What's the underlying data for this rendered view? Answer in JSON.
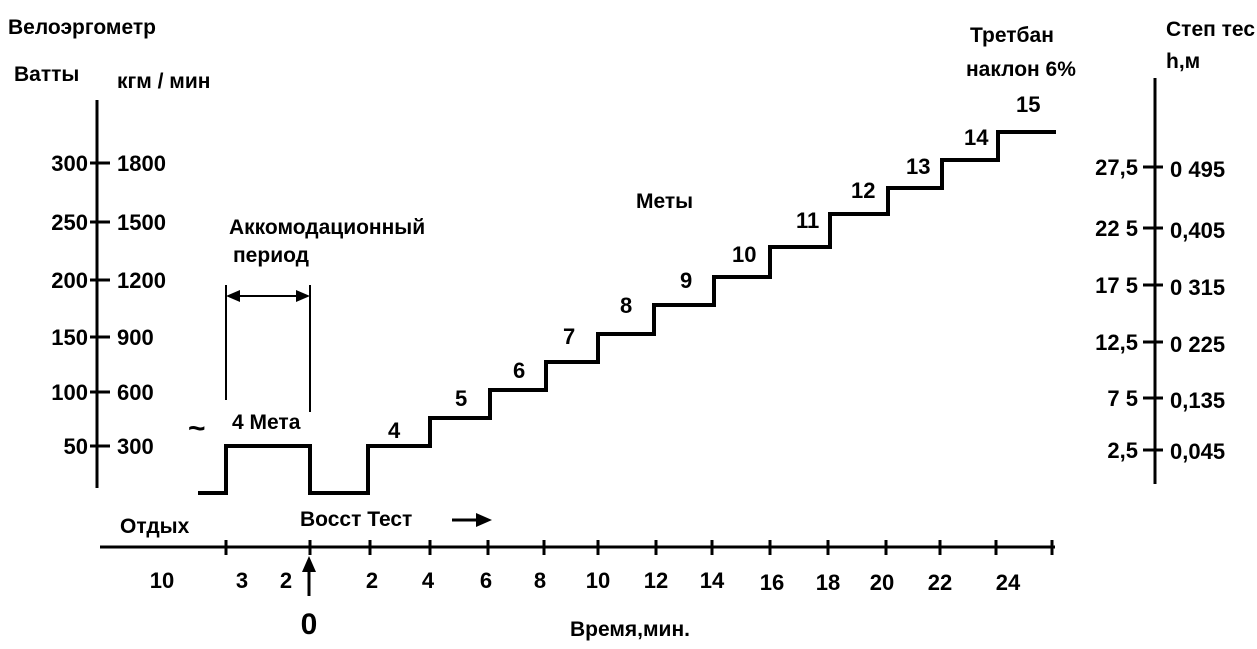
{
  "left_axis": {
    "title": "Велоэргометр",
    "watts_label": "Ватты",
    "kgm_label": "кгм / мин",
    "watts_ticks": [
      "300",
      "250",
      "200",
      "150",
      "100",
      "50"
    ],
    "kgm_ticks": [
      "1800",
      "1500",
      "1200",
      "900",
      "600",
      "300"
    ]
  },
  "right_axis": {
    "treadmill_label": "Третбан",
    "treadmill_incline": "наклон 6%",
    "step_label": "Степ тес",
    "step_unit": "h,м",
    "incline_ticks": [
      "27,5",
      "22 5",
      "17 5",
      "12,5",
      "7 5",
      "2,5"
    ],
    "height_ticks": [
      "0 495",
      "0,405",
      "0 315",
      "0 225",
      "0,135",
      "0,045"
    ]
  },
  "annotations": {
    "accommodation_line1": "Аккомодационный",
    "accommodation_line2": "период",
    "four_mets": "4 Мета",
    "tilde": "~",
    "mets": "Меты",
    "rest": "Отдых",
    "recovery_test": "Восст Тест",
    "zero": "0"
  },
  "x_axis": {
    "label": "Время,мин.",
    "ticks": [
      "10",
      "3",
      "2",
      "2",
      "4",
      "6",
      "8",
      "10",
      "12",
      "14",
      "16",
      "18",
      "20",
      "22",
      "24"
    ]
  },
  "stage_labels": [
    "4",
    "5",
    "6",
    "7",
    "8",
    "9",
    "10",
    "11",
    "12",
    "13",
    "14",
    "15"
  ],
  "chart_data": {
    "type": "line",
    "xlabel": "Время,мин.",
    "ylabel": "Ватты",
    "y_ticks_watts": [
      50,
      100,
      150,
      200,
      250,
      300
    ],
    "stages_watts_approx": [
      50,
      75,
      100,
      125,
      150,
      175,
      200,
      225,
      250,
      275,
      300,
      325
    ]
  }
}
